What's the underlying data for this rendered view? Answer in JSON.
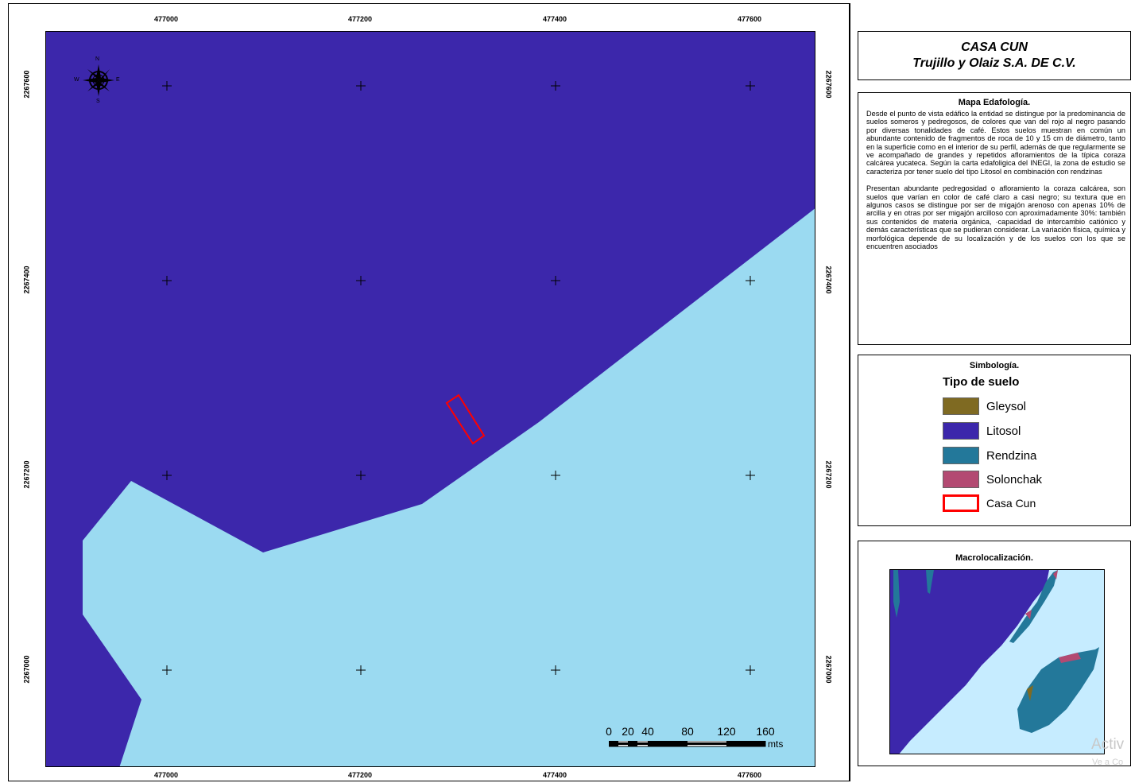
{
  "map": {
    "colors": {
      "litosol": "#3c27ab",
      "water": "#9bdaf1",
      "site": "#ff0000"
    },
    "x_ticks": [
      "477000",
      "477200",
      "477400",
      "477600"
    ],
    "y_ticks": [
      "2267600",
      "2267400",
      "2267200",
      "2267000"
    ],
    "compass": {
      "n": "N",
      "s": "S",
      "e": "E",
      "w": "W"
    },
    "scale": {
      "labels": [
        "0",
        "20",
        "40",
        "80",
        "120",
        "160"
      ],
      "unit": "mts"
    }
  },
  "title": {
    "line1": "CASA CUN",
    "line2": "Trujillo y Olaiz S.A. DE C.V."
  },
  "description": {
    "heading": "Mapa Edafología.",
    "para1": "Desde el punto de vista edáfico la entidad se distingue por la predominancia de suelos someros y pedregosos, de colores que van del rojo al negro pasando por diversas tonalidades de café. Estos suelos muestran en común un abundante contenido de fragmentos de roca de 10 y 15 cm de diámetro, tanto en la superficie como en el interior de su perfil, además de que regularmente se ve acompañado de grandes y repetidos afloramientos de la típica coraza calcárea yucateca. Según la carta edafoligica del INEGI, la zona de estudio se caracteriza por tener suelo del tipo Litosol en combinación con rendzinas",
    "para2": "Presentan abundante pedregosidad o afloramiento la coraza calcárea, son suelos que varían en color de café claro a casi negro; su textura que en algunos casos se distingue por ser de migajón arenoso con apenas 10% de arcilla y en otras por ser migajón arcilloso con aproximadamente 30%: también sus contenidos de materia orgánica, ·capacidad de intercambio catiónico y demás características que se pudieran considerar. La variación física, química y morfológica depende de su localización y de los suelos con los que se encuentren asociados"
  },
  "legend": {
    "heading": "Simbología.",
    "subheading": "Tipo de suelo",
    "items": [
      {
        "label": "Gleysol",
        "color": "#7f6a22"
      },
      {
        "label": "Litosol",
        "color": "#3c27ab"
      },
      {
        "label": "Rendzina",
        "color": "#23789a"
      },
      {
        "label": "Solonchak",
        "color": "#b34a72"
      },
      {
        "label": "Casa Cun",
        "color": "#ff0000"
      }
    ]
  },
  "macro": {
    "heading": "Macrolocalización."
  },
  "watermark": {
    "line1": "Activ",
    "line2": "Ve a Co"
  }
}
